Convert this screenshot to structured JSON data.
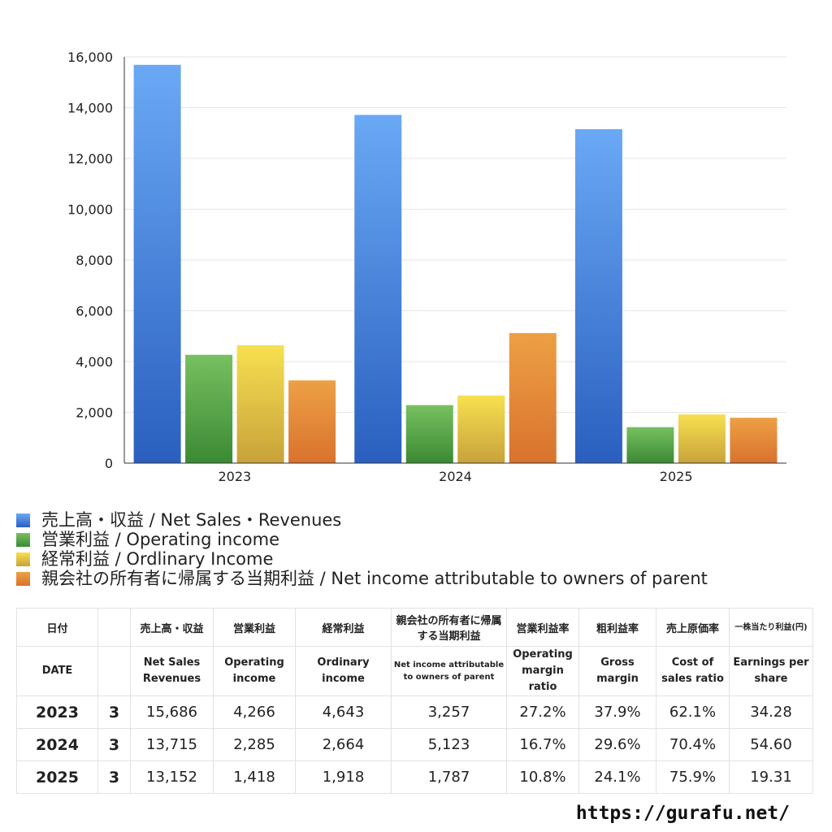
{
  "chart_data": {
    "type": "bar",
    "categories": [
      "2023",
      "2024",
      "2025"
    ],
    "ylim": [
      0,
      16000
    ],
    "yticks": [
      "0",
      "2,000",
      "4,000",
      "6,000",
      "8,000",
      "10,000",
      "12,000",
      "14,000",
      "16,000"
    ],
    "grid": true,
    "legend_position": "bottom",
    "series": [
      {
        "name": "売上高・収益 / Net Sales・Revenues",
        "values": [
          15686,
          13715,
          13152
        ],
        "color": "#4a8de6"
      },
      {
        "name": "営業利益 / Operating income",
        "values": [
          4266,
          2285,
          1418
        ],
        "color": "#56a84a"
      },
      {
        "name": "経常利益 / Ordlinary Income",
        "values": [
          4643,
          2664,
          1918
        ],
        "color": "#e6cc45"
      },
      {
        "name": "親会社の所有者に帰属する当期利益 / Net income attributable to owners of parent",
        "values": [
          3257,
          5123,
          1787
        ],
        "color": "#e08a36"
      }
    ]
  },
  "table": {
    "header_jp": [
      "日付",
      "売上高・収益",
      "営業利益",
      "経常利益",
      "親会社の所有者に帰属する当期利益",
      "営業利益率",
      "粗利益率",
      "売上原価率",
      "一株当たり利益(円)"
    ],
    "header_en": [
      "DATE",
      "Net Sales Revenues",
      "Operating income",
      "Ordinary income",
      "Net income attributable to owners of parent",
      "Operating margin ratio",
      "Gross margin",
      "Cost of sales ratio",
      "Earnings per share"
    ],
    "rows": [
      {
        "year": "2023",
        "month": "3",
        "values": [
          "15,686",
          "4,266",
          "4,643",
          "3,257",
          "27.2%",
          "37.9%",
          "62.1%",
          "34.28"
        ]
      },
      {
        "year": "2024",
        "month": "3",
        "values": [
          "13,715",
          "2,285",
          "2,664",
          "5,123",
          "16.7%",
          "29.6%",
          "70.4%",
          "54.60"
        ]
      },
      {
        "year": "2025",
        "month": "3",
        "values": [
          "13,152",
          "1,418",
          "1,918",
          "1,787",
          "10.8%",
          "24.1%",
          "75.9%",
          "19.31"
        ]
      }
    ]
  },
  "footer": {
    "url": "https://gurafu.net/"
  }
}
